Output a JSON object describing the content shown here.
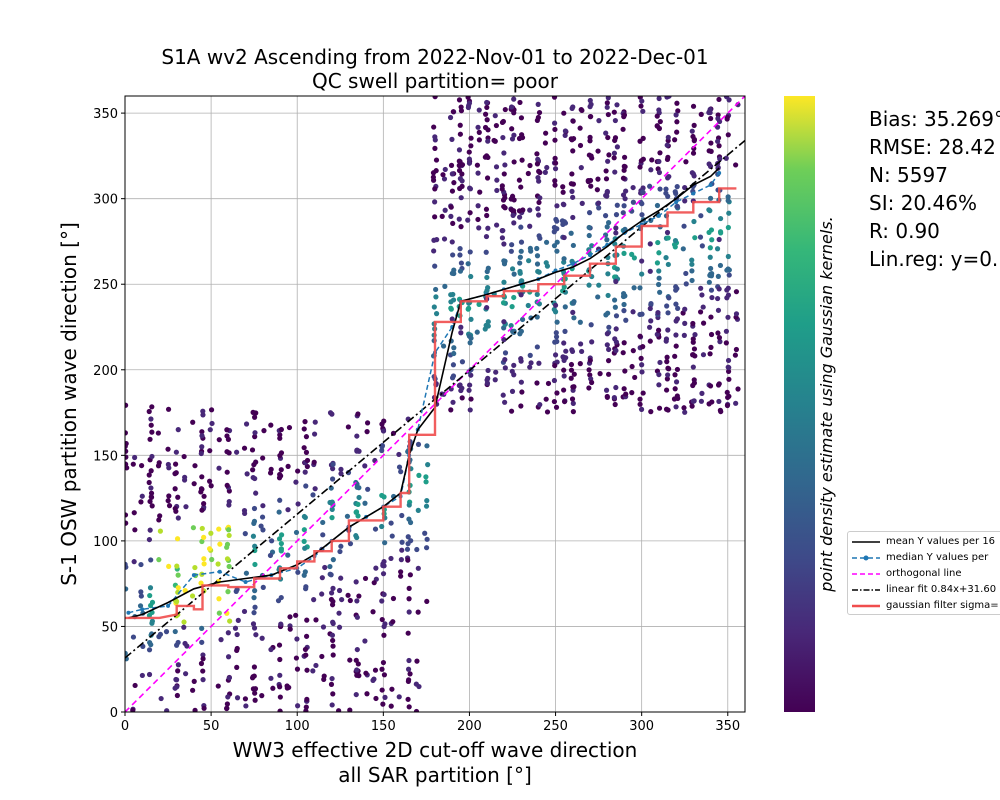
{
  "chart_data": {
    "type": "scatter",
    "title": "S1A wv2 Ascending from 2022-Nov-01 to 2022-Dec-01",
    "subtitle": "QC swell partition= poor",
    "xlabel_line1": "WW3 effective 2D cut-off wave direction",
    "xlabel_line2": "all SAR partition [°]",
    "ylabel": "S-1 OSW partition wave direction [°]",
    "colorbar_label": "point density estimate using Gaussian kernels.",
    "xlim": [
      0,
      360
    ],
    "ylim": [
      0,
      360
    ],
    "x_ticks": [
      0,
      50,
      100,
      150,
      200,
      250,
      300,
      350
    ],
    "y_ticks": [
      0,
      50,
      100,
      150,
      200,
      250,
      300,
      350
    ],
    "grid": true,
    "colormap": "viridis",
    "stats": {
      "bias": "Bias: 35.269°",
      "rmse": "RMSE: 28.42",
      "n": "N: 5597",
      "si": "SI: 20.46%",
      "r": "R: 0.90",
      "linreg": "Lin.reg: y=0."
    },
    "legend_position": "right",
    "legend": [
      {
        "label": "mean Y values per 16",
        "color": "#000000",
        "style": "solid"
      },
      {
        "label": "median Y values per",
        "color": "#1f77b4",
        "style": "dashed-marker"
      },
      {
        "label": "orthogonal line",
        "color": "#ff00ff",
        "style": "dashed"
      },
      {
        "label": "linear fit 0.84x+31.60",
        "color": "#000000",
        "style": "dashdot"
      },
      {
        "label": "gaussian filter sigma=",
        "color": "#f04d4d",
        "style": "solid"
      }
    ],
    "mean_line": {
      "x": [
        2,
        10,
        25,
        40,
        55,
        70,
        85,
        100,
        110,
        120,
        130,
        140,
        150,
        160,
        165,
        170,
        180,
        190,
        195,
        210,
        220,
        230,
        240,
        250,
        260,
        270,
        280,
        290,
        300,
        310,
        320,
        330,
        340,
        345
      ],
      "y": [
        55,
        57,
        64,
        72,
        76,
        78,
        80,
        86,
        92,
        100,
        108,
        114,
        120,
        128,
        150,
        165,
        178,
        222,
        240,
        244,
        247,
        250,
        253,
        257,
        260,
        265,
        272,
        280,
        287,
        293,
        300,
        308,
        313,
        318
      ]
    },
    "median_line": {
      "x": [
        2,
        10,
        25,
        40,
        55,
        70,
        85,
        100,
        110,
        120,
        130,
        140,
        150,
        160,
        165,
        170,
        180,
        190,
        195,
        210,
        220,
        230,
        240,
        250,
        260,
        270,
        280,
        290,
        300,
        310,
        320,
        330,
        340,
        345
      ],
      "y": [
        58,
        60,
        62,
        80,
        82,
        76,
        80,
        84,
        91,
        100,
        108,
        114,
        120,
        126,
        150,
        165,
        210,
        225,
        240,
        244,
        247,
        250,
        253,
        258,
        262,
        267,
        273,
        280,
        285,
        290,
        298,
        303,
        308,
        315
      ]
    },
    "gaussian_line": {
      "x": [
        0,
        10,
        20,
        30,
        30,
        40,
        40,
        45,
        45,
        50,
        60,
        60,
        75,
        75,
        90,
        90,
        100,
        100,
        110,
        110,
        120,
        120,
        130,
        130,
        150,
        150,
        160,
        160,
        165,
        165,
        180,
        180,
        195,
        195,
        210,
        210,
        220,
        220,
        240,
        240,
        255,
        255,
        270,
        270,
        285,
        285,
        300,
        300,
        315,
        315,
        330,
        330,
        345,
        345,
        355
      ],
      "y": [
        55,
        55,
        55,
        57,
        62,
        62,
        60,
        60,
        74,
        74,
        74,
        73,
        73,
        78,
        78,
        84,
        84,
        88,
        88,
        94,
        94,
        100,
        100,
        112,
        112,
        120,
        120,
        128,
        128,
        162,
        162,
        228,
        228,
        240,
        240,
        243,
        243,
        246,
        246,
        250,
        250,
        255,
        255,
        262,
        262,
        272,
        272,
        284,
        284,
        292,
        292,
        298,
        298,
        306,
        306
      ]
    },
    "linear_fit": {
      "slope": 0.84,
      "intercept": 31.6
    }
  }
}
